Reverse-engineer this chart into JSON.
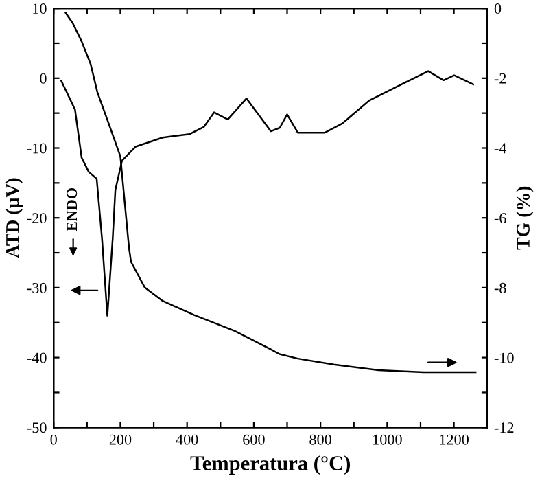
{
  "chart_data": {
    "type": "line",
    "xlabel": "Temperatura (°C)",
    "ylabel": "ATD (μV)",
    "y2label": "TG (%)",
    "annotations": [
      "ENDO"
    ],
    "xlim": [
      0,
      1300
    ],
    "xticks": [
      0,
      {
        "value": 100,
        "label": null
      },
      200,
      {
        "value": 300,
        "label": null
      },
      400,
      {
        "value": 500,
        "label": null
      },
      600,
      {
        "value": 700,
        "label": null
      },
      800,
      {
        "value": 900,
        "label": null
      },
      1000,
      {
        "value": 1100,
        "label": null
      },
      1200
    ],
    "ylim": [
      -50,
      10
    ],
    "yticks": [
      -50,
      {
        "value": -45,
        "label": null
      },
      -40,
      {
        "value": -35,
        "label": null
      },
      -30,
      {
        "value": -25,
        "label": null
      },
      -20,
      {
        "value": -15,
        "label": null
      },
      -10,
      {
        "value": -5,
        "label": null
      },
      0,
      {
        "value": 5,
        "label": null
      },
      10
    ],
    "y2lim": [
      -12,
      0
    ],
    "y2ticks": [
      -12,
      {
        "value": -11,
        "label": null
      },
      -10,
      {
        "value": -9,
        "label": null
      },
      -8,
      {
        "value": -7,
        "label": null
      },
      -6,
      {
        "value": -5,
        "label": null
      },
      -4,
      {
        "value": -3,
        "label": null
      },
      -2,
      {
        "value": -1,
        "label": null
      },
      0
    ],
    "grid": false,
    "legend": false,
    "marker": "none",
    "line_style": "solid",
    "series": [
      {
        "color": "#000000",
        "x": [
          23,
          64,
          84,
          105,
          129,
          145,
          161,
          177,
          185,
          205,
          246,
          327,
          408,
          450,
          481,
          522,
          578,
          651,
          678,
          700,
          732,
          813,
          865,
          946,
          1055,
          1123,
          1169,
          1201,
          1258
        ],
        "values": [
          -0.4,
          -4.5,
          -11.4,
          -13.4,
          -14.4,
          -23,
          -34,
          -23,
          -16,
          -11.8,
          -9.8,
          -8.5,
          -8,
          -7,
          -4.9,
          -5.9,
          -2.9,
          -7.6,
          -7.1,
          -5.2,
          -7.8,
          -7.8,
          -6.5,
          -3.2,
          -0.6,
          1.0,
          -0.3,
          0.4,
          -0.9
        ]
      },
      {
        "color": "#000000",
        "axis": "y2",
        "x": [
          36,
          57,
          84,
          111,
          131,
          165,
          200,
          226,
          232,
          273,
          327,
          421,
          543,
          650,
          677,
          732,
          840,
          974,
          1109,
          1265
        ],
        "values": [
          -0.13,
          -0.42,
          -0.95,
          -1.6,
          -2.4,
          -3.3,
          -4.24,
          -6.87,
          -7.26,
          -7.99,
          -8.38,
          -8.78,
          -9.24,
          -9.76,
          -9.9,
          -10.03,
          -10.2,
          -10.36,
          -10.42,
          -10.42
        ]
      }
    ]
  }
}
